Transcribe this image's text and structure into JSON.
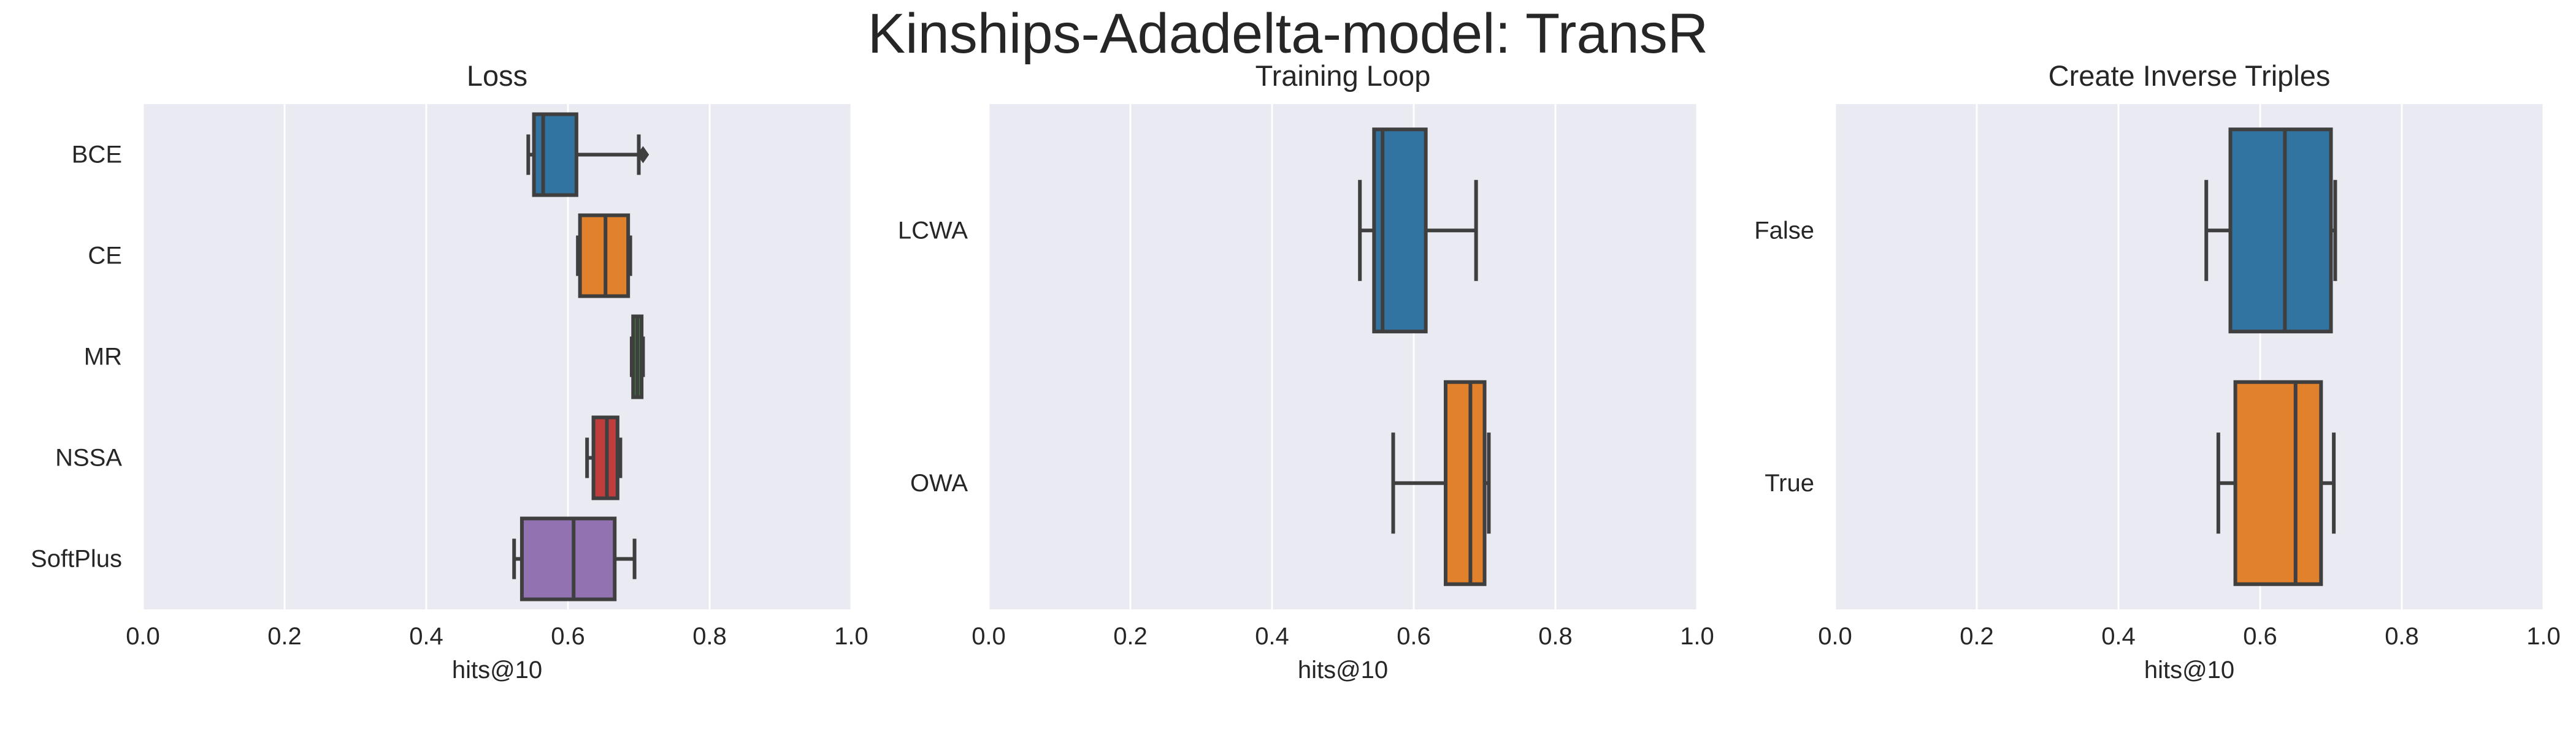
{
  "chart_data": {
    "suptitle": "Kinships-Adadelta-model: TransR",
    "charts": [
      {
        "type": "box",
        "orientation": "horizontal",
        "title": "Loss",
        "xlabel": "hits@10",
        "xlim": [
          0.0,
          1.0
        ],
        "xticks": [
          "0.0",
          "0.2",
          "0.4",
          "0.6",
          "0.8",
          "1.0"
        ],
        "grid": true,
        "categories": [
          "BCE",
          "CE",
          "MR",
          "NSSA",
          "SoftPlus"
        ],
        "boxes": [
          {
            "category": "BCE",
            "color": "#3274a1",
            "whisker_low": 0.544,
            "q1": 0.552,
            "median": 0.565,
            "q3": 0.612,
            "whisker_high": 0.7,
            "outliers": [
              0.706
            ]
          },
          {
            "category": "CE",
            "color": "#e1812c",
            "whisker_low": 0.614,
            "q1": 0.617,
            "median": 0.653,
            "q3": 0.685,
            "whisker_high": 0.688,
            "outliers": []
          },
          {
            "category": "MR",
            "color": "#3a923a",
            "whisker_low": 0.69,
            "q1": 0.692,
            "median": 0.698,
            "q3": 0.704,
            "whisker_high": 0.706,
            "outliers": []
          },
          {
            "category": "NSSA",
            "color": "#c03d3e",
            "whisker_low": 0.627,
            "q1": 0.636,
            "median": 0.655,
            "q3": 0.67,
            "whisker_high": 0.674,
            "outliers": []
          },
          {
            "category": "SoftPlus",
            "color": "#9372b2",
            "whisker_low": 0.524,
            "q1": 0.535,
            "median": 0.608,
            "q3": 0.666,
            "whisker_high": 0.694,
            "outliers": []
          }
        ]
      },
      {
        "type": "box",
        "orientation": "horizontal",
        "title": "Training Loop",
        "xlabel": "hits@10",
        "xlim": [
          0.0,
          1.0
        ],
        "xticks": [
          "0.0",
          "0.2",
          "0.4",
          "0.6",
          "0.8",
          "1.0"
        ],
        "grid": true,
        "categories": [
          "LCWA",
          "OWA"
        ],
        "boxes": [
          {
            "category": "LCWA",
            "color": "#3274a1",
            "whisker_low": 0.524,
            "q1": 0.544,
            "median": 0.556,
            "q3": 0.617,
            "whisker_high": 0.688,
            "outliers": []
          },
          {
            "category": "OWA",
            "color": "#e1812c",
            "whisker_low": 0.571,
            "q1": 0.645,
            "median": 0.68,
            "q3": 0.7,
            "whisker_high": 0.706,
            "outliers": []
          }
        ]
      },
      {
        "type": "box",
        "orientation": "horizontal",
        "title": "Create Inverse Triples",
        "xlabel": "hits@10",
        "xlim": [
          0.0,
          1.0
        ],
        "xticks": [
          "0.0",
          "0.2",
          "0.4",
          "0.6",
          "0.8",
          "1.0"
        ],
        "grid": true,
        "categories": [
          "False",
          "True"
        ],
        "boxes": [
          {
            "category": "False",
            "color": "#3274a1",
            "whisker_low": 0.524,
            "q1": 0.558,
            "median": 0.635,
            "q3": 0.7,
            "whisker_high": 0.706,
            "outliers": []
          },
          {
            "category": "True",
            "color": "#e1812c",
            "whisker_low": 0.541,
            "q1": 0.565,
            "median": 0.65,
            "q3": 0.686,
            "whisker_high": 0.704,
            "outliers": []
          }
        ]
      }
    ]
  }
}
